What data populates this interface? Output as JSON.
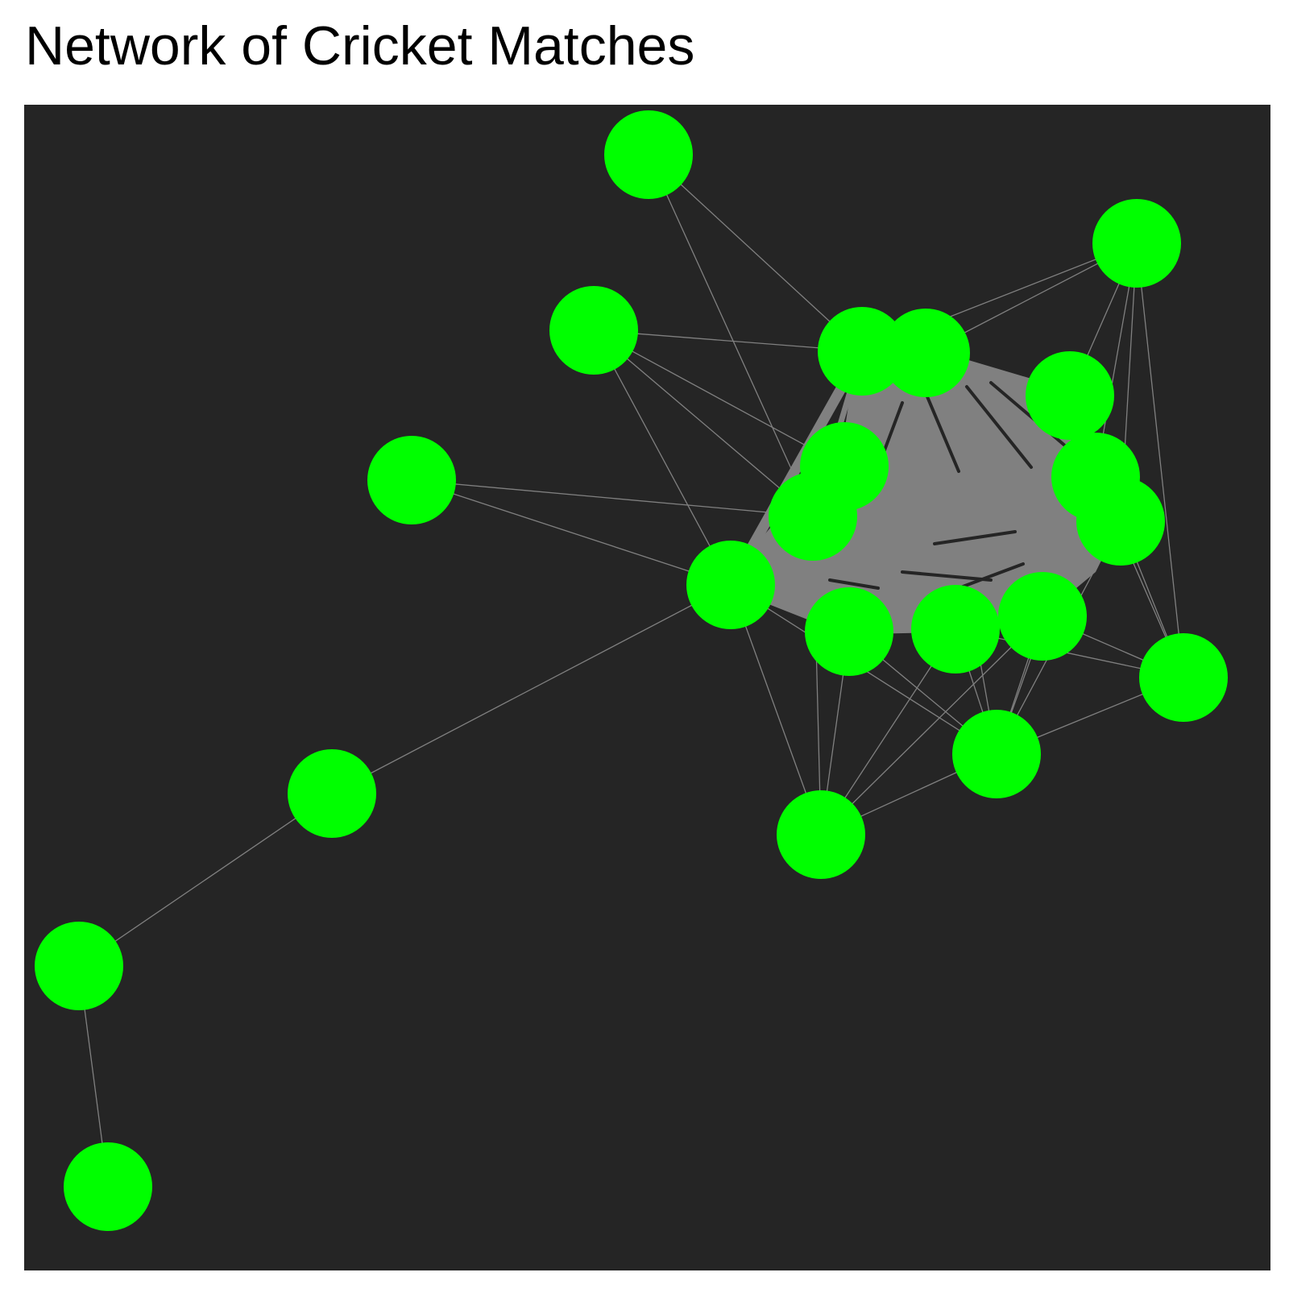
{
  "title": "Network of Cricket Matches",
  "colors": {
    "panel_background": "#252525",
    "node_fill": "#00ff00",
    "edge_stroke": "#808080"
  },
  "graph": {
    "node_count": 22
  }
}
